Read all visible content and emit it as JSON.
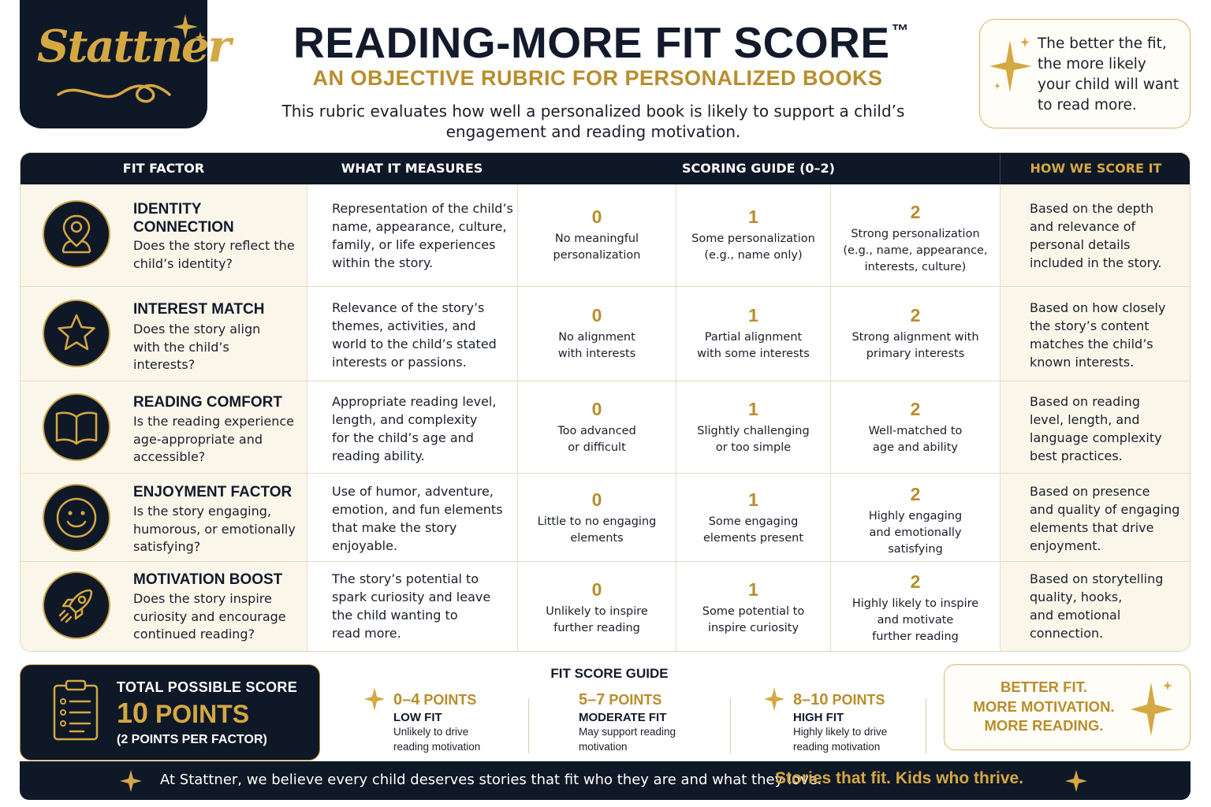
{
  "brand": {
    "logo_text": "Stattner"
  },
  "header": {
    "title": "READING-MORE FIT SCORE",
    "trademark": "™",
    "subtitle": "AN OBJECTIVE RUBRIC FOR PERSONALIZED BOOKS",
    "intro_line1": "This rubric evaluates how well a personalized book is likely to support a child’s",
    "intro_line2": "engagement and reading motivation."
  },
  "callout": {
    "lines": [
      "The better the fit,",
      "the more likely",
      "your child will want",
      "to read more."
    ]
  },
  "table": {
    "headers": {
      "factor": "FIT FACTOR",
      "measures": "WHAT IT MEASURES",
      "scoring": "SCORING GUIDE (0–2)",
      "how": "HOW WE SCORE IT"
    },
    "rows": [
      {
        "icon": "person-pin-icon",
        "title_lines": [
          "IDENTITY",
          "CONNECTION"
        ],
        "question_lines": [
          "Does the story reflect the",
          "child’s identity?"
        ],
        "measure_lines": [
          "Representation of the child’s",
          "name, appearance, culture,",
          "family, or life experiences",
          "within the story."
        ],
        "scores": [
          {
            "num": "0",
            "lines": [
              "No meaningful",
              "personalization"
            ]
          },
          {
            "num": "1",
            "lines": [
              "Some personalization",
              "(e.g., name only)"
            ]
          },
          {
            "num": "2",
            "lines": [
              "Strong personalization",
              "(e.g., name, appearance,",
              "interests, culture)"
            ]
          }
        ],
        "how_lines": [
          "Based on the depth",
          "and relevance of",
          "personal details",
          "included in the story."
        ]
      },
      {
        "icon": "star-icon",
        "title_lines": [
          "INTEREST MATCH"
        ],
        "question_lines": [
          "Does the story align",
          "with the child’s",
          "interests?"
        ],
        "measure_lines": [
          "Relevance of the story’s",
          "themes, activities, and",
          "world to the child’s stated",
          "interests or passions."
        ],
        "scores": [
          {
            "num": "0",
            "lines": [
              "No alignment",
              "with interests"
            ]
          },
          {
            "num": "1",
            "lines": [
              "Partial alignment",
              "with some interests"
            ]
          },
          {
            "num": "2",
            "lines": [
              "Strong alignment with",
              "primary interests"
            ]
          }
        ],
        "how_lines": [
          "Based on how closely",
          "the story’s content",
          "matches the child’s",
          "known interests."
        ]
      },
      {
        "icon": "open-book-icon",
        "title_lines": [
          "READING COMFORT"
        ],
        "question_lines": [
          "Is the reading experience",
          "age-appropriate and",
          "accessible?"
        ],
        "measure_lines": [
          "Appropriate reading level,",
          "length, and complexity",
          "for the child’s age and",
          "reading ability."
        ],
        "scores": [
          {
            "num": "0",
            "lines": [
              "Too advanced",
              "or difficult"
            ]
          },
          {
            "num": "1",
            "lines": [
              "Slightly challenging",
              "or too simple"
            ]
          },
          {
            "num": "2",
            "lines": [
              "Well-matched to",
              "age and ability"
            ]
          }
        ],
        "how_lines": [
          "Based on reading",
          "level, length, and",
          "language complexity",
          "best practices."
        ]
      },
      {
        "icon": "smiley-icon",
        "title_lines": [
          "ENJOYMENT FACTOR"
        ],
        "question_lines": [
          "Is the story engaging,",
          "humorous, or emotionally",
          "satisfying?"
        ],
        "measure_lines": [
          "Use of humor, adventure,",
          "emotion, and fun elements",
          "that make the story",
          "enjoyable."
        ],
        "scores": [
          {
            "num": "0",
            "lines": [
              "Little to no engaging",
              "elements"
            ]
          },
          {
            "num": "1",
            "lines": [
              "Some engaging",
              "elements present"
            ]
          },
          {
            "num": "2",
            "lines": [
              "Highly engaging",
              "and emotionally",
              "satisfying"
            ]
          }
        ],
        "how_lines": [
          "Based on presence",
          "and quality of engaging",
          "elements that drive",
          "enjoyment."
        ]
      },
      {
        "icon": "rocket-icon",
        "title_lines": [
          "MOTIVATION BOOST"
        ],
        "question_lines": [
          "Does the story inspire",
          "curiosity and encourage",
          "continued reading?"
        ],
        "measure_lines": [
          "The story’s potential to",
          "spark curiosity and leave",
          "the child wanting to",
          "read more."
        ],
        "scores": [
          {
            "num": "0",
            "lines": [
              "Unlikely to inspire",
              "further reading"
            ]
          },
          {
            "num": "1",
            "lines": [
              "Some potential to",
              "inspire curiosity"
            ]
          },
          {
            "num": "2",
            "lines": [
              "Highly likely to inspire",
              "and motivate",
              "further reading"
            ]
          }
        ],
        "how_lines": [
          "Based on storytelling",
          "quality, hooks,",
          "and emotional",
          "connection."
        ]
      }
    ]
  },
  "total": {
    "label": "TOTAL POSSIBLE SCORE",
    "value": "10",
    "unit": "POINTS",
    "sub": "(2 POINTS PER FACTOR)"
  },
  "guide": {
    "title": "FIT SCORE GUIDE",
    "bands": [
      {
        "range": "0–4",
        "unit": "POINTS",
        "level": "LOW FIT",
        "desc_lines": [
          "Unlikely to drive",
          "reading motivation"
        ]
      },
      {
        "range": "5–7",
        "unit": "POINTS",
        "level": "MODERATE FIT",
        "desc_lines": [
          "May support reading",
          "motivation"
        ]
      },
      {
        "range": "8–10",
        "unit": "POINTS",
        "level": "HIGH FIT",
        "desc_lines": [
          "Highly likely to drive",
          "reading motivation"
        ]
      }
    ]
  },
  "promo": {
    "lines": [
      "BETTER FIT.",
      "MORE MOTIVATION.",
      "MORE READING."
    ]
  },
  "footer": {
    "text": "At Stattner, we believe every child deserves stories that fit who they are and what they love.",
    "tagline": "Stories that fit. Kids who thrive."
  },
  "colors": {
    "navy": "#0f1827",
    "gold": "#b98d2c",
    "cream": "#fbf6ea"
  }
}
